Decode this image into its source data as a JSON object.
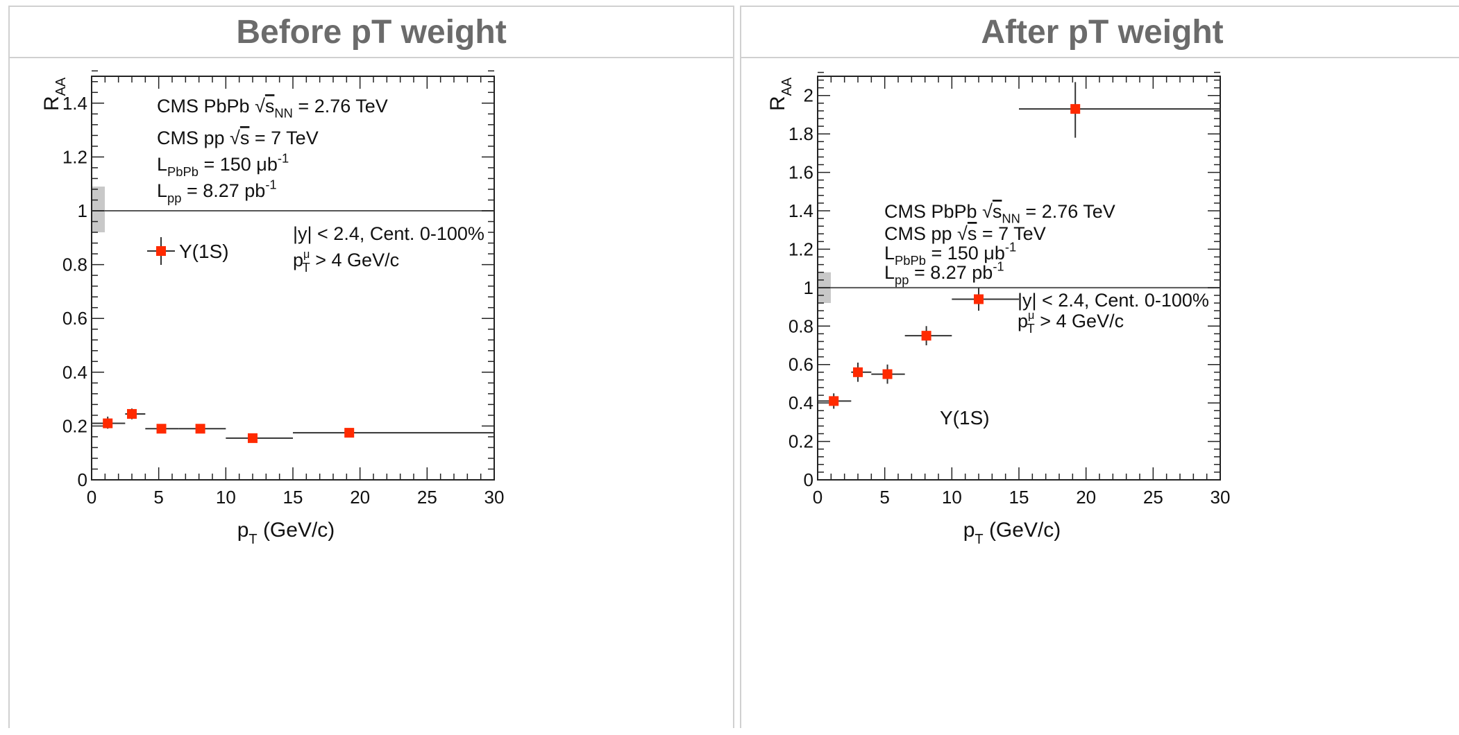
{
  "panels": [
    {
      "header": "Before pT weight",
      "chart_data": {
        "type": "scatter",
        "xlabel": "p",
        "xlabel_sub": "T",
        "xlabel_unit": "(GeV/c)",
        "ylabel": "R",
        "ylabel_sub": "AA",
        "xlim": [
          0,
          30
        ],
        "ylim": [
          0,
          1.5
        ],
        "xticks": [
          "0",
          "5",
          "10",
          "15",
          "20",
          "25",
          "30"
        ],
        "yticks": [
          "0",
          "0.2",
          "0.4",
          "0.6",
          "0.8",
          "1",
          "1.2",
          "1.4"
        ],
        "reference_line": 1,
        "global_uncertainty_box": [
          0.92,
          1.09
        ],
        "series": [
          {
            "name": "Υ(1S)",
            "color": "#ff2a00",
            "points": [
              {
                "x": 1.2,
                "y": 0.21,
                "xlo": 0,
                "xhi": 2.5,
                "ylo": 0.19,
                "yhi": 0.235
              },
              {
                "x": 3.0,
                "y": 0.245,
                "xlo": 2.5,
                "xhi": 4,
                "ylo": 0.225,
                "yhi": 0.265
              },
              {
                "x": 5.2,
                "y": 0.19,
                "xlo": 4,
                "xhi": 6.5,
                "ylo": 0.175,
                "yhi": 0.205
              },
              {
                "x": 8.1,
                "y": 0.19,
                "xlo": 6.5,
                "xhi": 10,
                "ylo": 0.178,
                "yhi": 0.202
              },
              {
                "x": 12.0,
                "y": 0.155,
                "xlo": 10,
                "xhi": 15,
                "ylo": 0.142,
                "yhi": 0.168
              },
              {
                "x": 19.2,
                "y": 0.175,
                "xlo": 15,
                "xhi": 30,
                "ylo": 0.16,
                "yhi": 0.19
              }
            ]
          }
        ],
        "legend": {
          "label": "Υ(1S)",
          "placement": "upper-left"
        },
        "annotations": {
          "cms_pbpb": {
            "a": "CMS PbPb ",
            "s": "s",
            "nn": "NN",
            "rest": " = 2.76 TeV"
          },
          "cms_pp": {
            "a": "CMS pp ",
            "s": "s",
            "rest": " = 7 TeV"
          },
          "lumi_pbpb": {
            "a": "L",
            "sub": "PbPb",
            "mid": " = 150 μb",
            "sup": "-1"
          },
          "lumi_pp": {
            "a": "L",
            "sub": "pp",
            "mid": " = 8.27 pb",
            "sup": "-1"
          },
          "cut_rap": "|y| < 2.4, Cent. 0-100%",
          "cut_pt": {
            "a": "p",
            "sub": "T",
            "sup": "μ",
            "rest": " > 4 GeV/c"
          }
        }
      }
    },
    {
      "header": "After pT weight",
      "chart_data": {
        "type": "scatter",
        "xlabel": "p",
        "xlabel_sub": "T",
        "xlabel_unit": "(GeV/c)",
        "ylabel": "R",
        "ylabel_sub": "AA",
        "xlim": [
          0,
          30
        ],
        "ylim": [
          0,
          2.1
        ],
        "xticks": [
          "0",
          "5",
          "10",
          "15",
          "20",
          "25",
          "30"
        ],
        "yticks": [
          "0",
          "0.2",
          "0.4",
          "0.6",
          "0.8",
          "1",
          "1.2",
          "1.4",
          "1.6",
          "1.8",
          "2"
        ],
        "reference_line": 1,
        "global_uncertainty_box": [
          0.92,
          1.08
        ],
        "series": [
          {
            "name": "Υ(1S)",
            "color": "#ff2a00",
            "points": [
              {
                "x": 1.2,
                "y": 0.41,
                "xlo": 0,
                "xhi": 2.5,
                "ylo": 0.37,
                "yhi": 0.45
              },
              {
                "x": 3.0,
                "y": 0.56,
                "xlo": 2.5,
                "xhi": 4,
                "ylo": 0.51,
                "yhi": 0.61
              },
              {
                "x": 5.2,
                "y": 0.55,
                "xlo": 4,
                "xhi": 6.5,
                "ylo": 0.5,
                "yhi": 0.6
              },
              {
                "x": 8.1,
                "y": 0.75,
                "xlo": 6.5,
                "xhi": 10,
                "ylo": 0.7,
                "yhi": 0.8
              },
              {
                "x": 12.0,
                "y": 0.94,
                "xlo": 10,
                "xhi": 15,
                "ylo": 0.88,
                "yhi": 1.0
              },
              {
                "x": 19.2,
                "y": 1.93,
                "xlo": 15,
                "xhi": 30,
                "ylo": 1.78,
                "yhi": 2.07
              }
            ]
          }
        ],
        "legend": {
          "label": "Υ(1S)",
          "placement": "lower-middle"
        },
        "annotations": {
          "cms_pbpb": {
            "a": "CMS PbPb ",
            "s": "s",
            "nn": "NN",
            "rest": " = 2.76 TeV"
          },
          "cms_pp": {
            "a": "CMS pp ",
            "s": "s",
            "rest": " = 7 TeV"
          },
          "lumi_pbpb": {
            "a": "L",
            "sub": "PbPb",
            "mid": " = 150 μb",
            "sup": "-1"
          },
          "lumi_pp": {
            "a": "L",
            "sub": "pp",
            "mid": " = 8.27 pb",
            "sup": "-1"
          },
          "cut_rap": "|y| < 2.4, Cent. 0-100%",
          "cut_pt": {
            "a": "p",
            "sub": "T",
            "sup": "μ",
            "rest": " > 4 GeV/c"
          }
        }
      }
    }
  ]
}
